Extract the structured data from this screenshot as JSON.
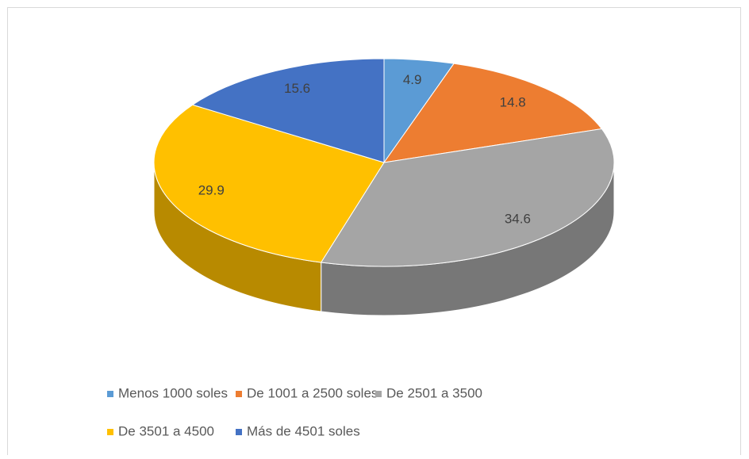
{
  "chart_data": {
    "type": "pie3d",
    "categories": [
      "Menos 1000 soles",
      "De 1001 a 2500 soles",
      "De 2501 a 3500",
      "De 3501 a 4500",
      "Más de 4501 soles"
    ],
    "values": [
      4.9,
      14.8,
      34.6,
      29.9,
      15.6
    ],
    "colors": [
      "#5b9bd5",
      "#ed7d31",
      "#a5a5a5",
      "#ffc000",
      "#4472c4"
    ],
    "legend": "bottom"
  }
}
